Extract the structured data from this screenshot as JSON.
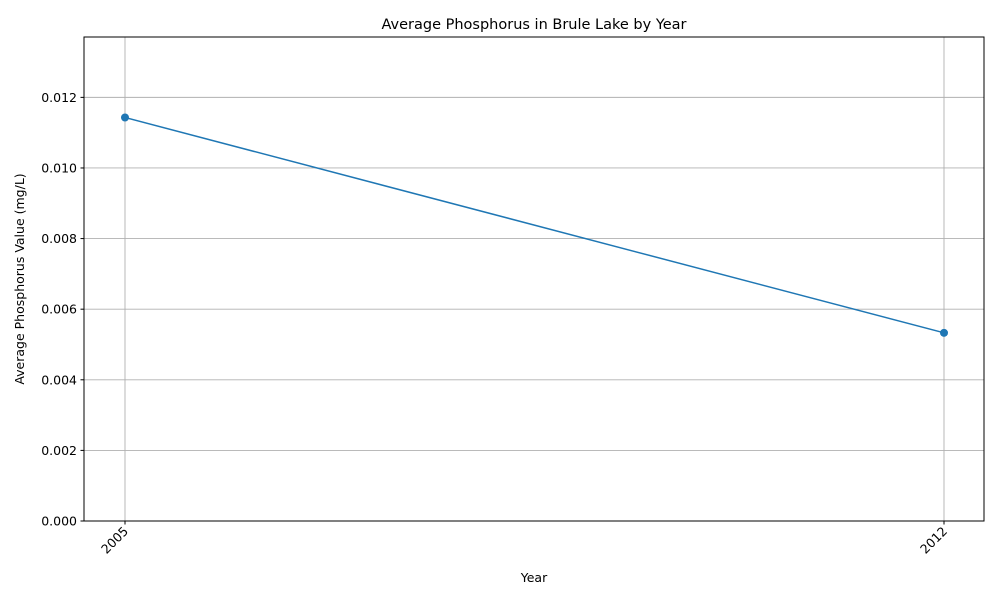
{
  "chart_data": {
    "type": "line",
    "title": "Average Phosphorus in Brule Lake by Year",
    "xlabel": "Year",
    "ylabel": "Average Phosphorus Value (mg/L)",
    "x": [
      "2005",
      "2012"
    ],
    "series": [
      {
        "values": [
          0.01143,
          0.00533
        ]
      }
    ],
    "ylim": [
      0,
      0.01371
    ],
    "yticks": [
      0,
      0.002,
      0.004,
      0.006,
      0.008,
      0.01,
      0.012
    ],
    "ytick_labels": [
      "0.000",
      "0.002",
      "0.004",
      "0.006",
      "0.008",
      "0.010",
      "0.012"
    ],
    "grid": true,
    "line_color": "#1f77b4",
    "marker": "circle"
  }
}
